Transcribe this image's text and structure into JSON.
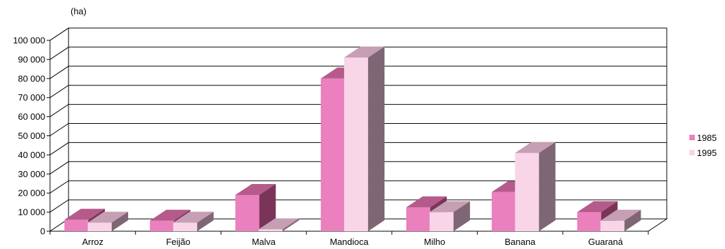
{
  "chart_data": {
    "type": "bar",
    "unit_label": "(ha)",
    "categories": [
      "Arroz",
      "Feijão",
      "Malva",
      "Mandioca",
      "Milho",
      "Banana",
      "Guaraná"
    ],
    "series": [
      {
        "name": "1985",
        "values": [
          6000,
          5500,
          19000,
          80000,
          12500,
          20500,
          10000
        ],
        "colors": {
          "front": "#EA80BD",
          "top": "#B55A8B",
          "side": "#7A3457"
        }
      },
      {
        "name": "1995",
        "values": [
          4500,
          4500,
          1000,
          91000,
          10000,
          41000,
          5500
        ],
        "colors": {
          "front": "#F9D5E8",
          "top": "#C69FB4",
          "side": "#7E6674"
        }
      }
    ],
    "ylim": [
      0,
      100000
    ],
    "yticks": [
      "0",
      "10 000",
      "20 000",
      "30 000",
      "40 000",
      "50 000",
      "60 000",
      "70 000",
      "80 000",
      "90 000",
      "100 000"
    ],
    "grid": true,
    "legend_position": "right"
  }
}
